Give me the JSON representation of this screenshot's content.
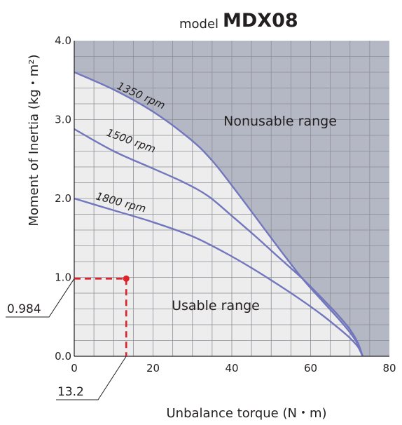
{
  "title": {
    "prefix": "model",
    "model": "MDX08"
  },
  "chart_data": {
    "type": "line",
    "xlabel": "Unbalance torque (N・m)",
    "ylabel": "Moment of Inertia (kg・m²)",
    "xlim": [
      0,
      80
    ],
    "ylim": [
      0,
      4.0
    ],
    "x_ticks": [
      "0",
      "20",
      "40",
      "60",
      "80"
    ],
    "y_ticks": [
      "0.0",
      "1.0",
      "2.0",
      "3.0",
      "4.0"
    ],
    "grid": true,
    "regions": [
      {
        "label": "Nonusable range",
        "color": "#b4b8c4"
      },
      {
        "label": "Usable range",
        "color": "#ededed"
      }
    ],
    "series": [
      {
        "name": "1350 rpm",
        "color": "#7276bd",
        "x": [
          0,
          10,
          20,
          29.5,
          35,
          41,
          47,
          53,
          58,
          63,
          67,
          70,
          72,
          73.2
        ],
        "y": [
          3.6,
          3.38,
          3.1,
          2.75,
          2.48,
          2.1,
          1.7,
          1.3,
          0.98,
          0.7,
          0.48,
          0.3,
          0.15,
          0.0
        ]
      },
      {
        "name": "1500 rpm",
        "color": "#7276bd",
        "x": [
          0,
          10,
          20,
          28,
          34,
          40,
          46,
          52,
          58,
          63,
          67,
          70,
          72,
          73.2
        ],
        "y": [
          2.88,
          2.6,
          2.38,
          2.2,
          2.03,
          1.78,
          1.52,
          1.25,
          0.98,
          0.73,
          0.52,
          0.34,
          0.17,
          0.0
        ]
      },
      {
        "name": "1800 rpm",
        "color": "#7276bd",
        "x": [
          0,
          10,
          20,
          30,
          38,
          45,
          52,
          58,
          63,
          67,
          70,
          72,
          73.2
        ],
        "y": [
          2.0,
          1.85,
          1.7,
          1.52,
          1.32,
          1.12,
          0.9,
          0.7,
          0.52,
          0.36,
          0.23,
          0.12,
          0.0
        ]
      }
    ],
    "annotations": {
      "point": {
        "x": 13.2,
        "y": 0.984,
        "color": "#e0202a"
      },
      "x_value_label": "13.2",
      "y_value_label": "0.984"
    }
  }
}
